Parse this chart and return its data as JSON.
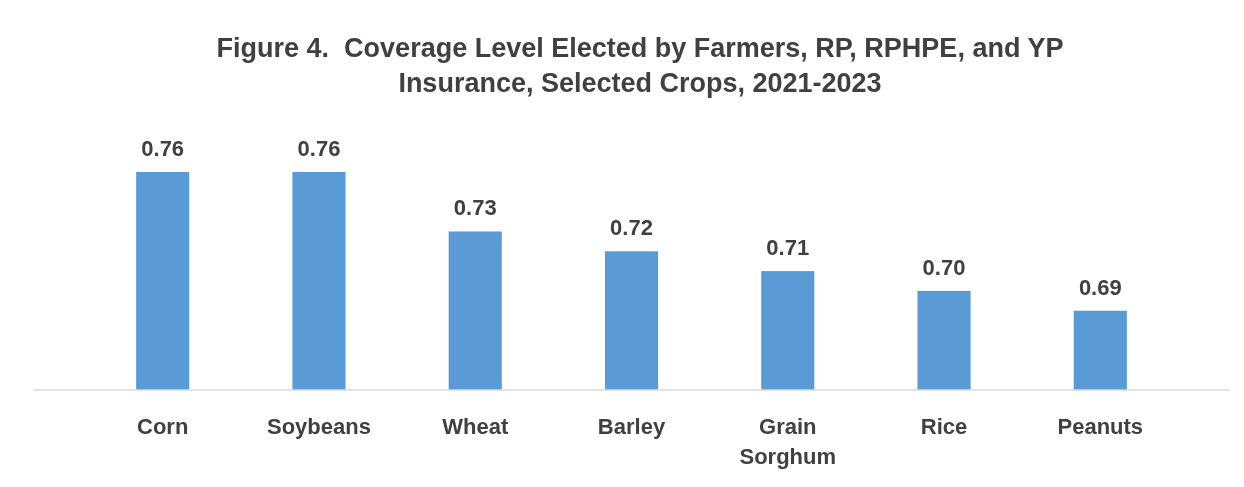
{
  "chart_data": {
    "type": "bar",
    "title": "Figure 4.  Coverage Level Elected by Farmers, RP, RPHPE, and YP Insurance, Selected Crops, 2021-2023",
    "categories": [
      "Corn",
      "Soybeans",
      "Wheat",
      "Barley",
      "Grain Sorghum",
      "Rice",
      "Peanuts"
    ],
    "values": [
      0.76,
      0.76,
      0.73,
      0.72,
      0.71,
      0.7,
      0.69
    ],
    "value_labels": [
      "0.76",
      "0.76",
      "0.73",
      "0.72",
      "0.71",
      "0.70",
      "0.69"
    ],
    "color": "#5b9bd5",
    "ylim": [
      0.65,
      0.76
    ],
    "tick_labels": "x"
  }
}
